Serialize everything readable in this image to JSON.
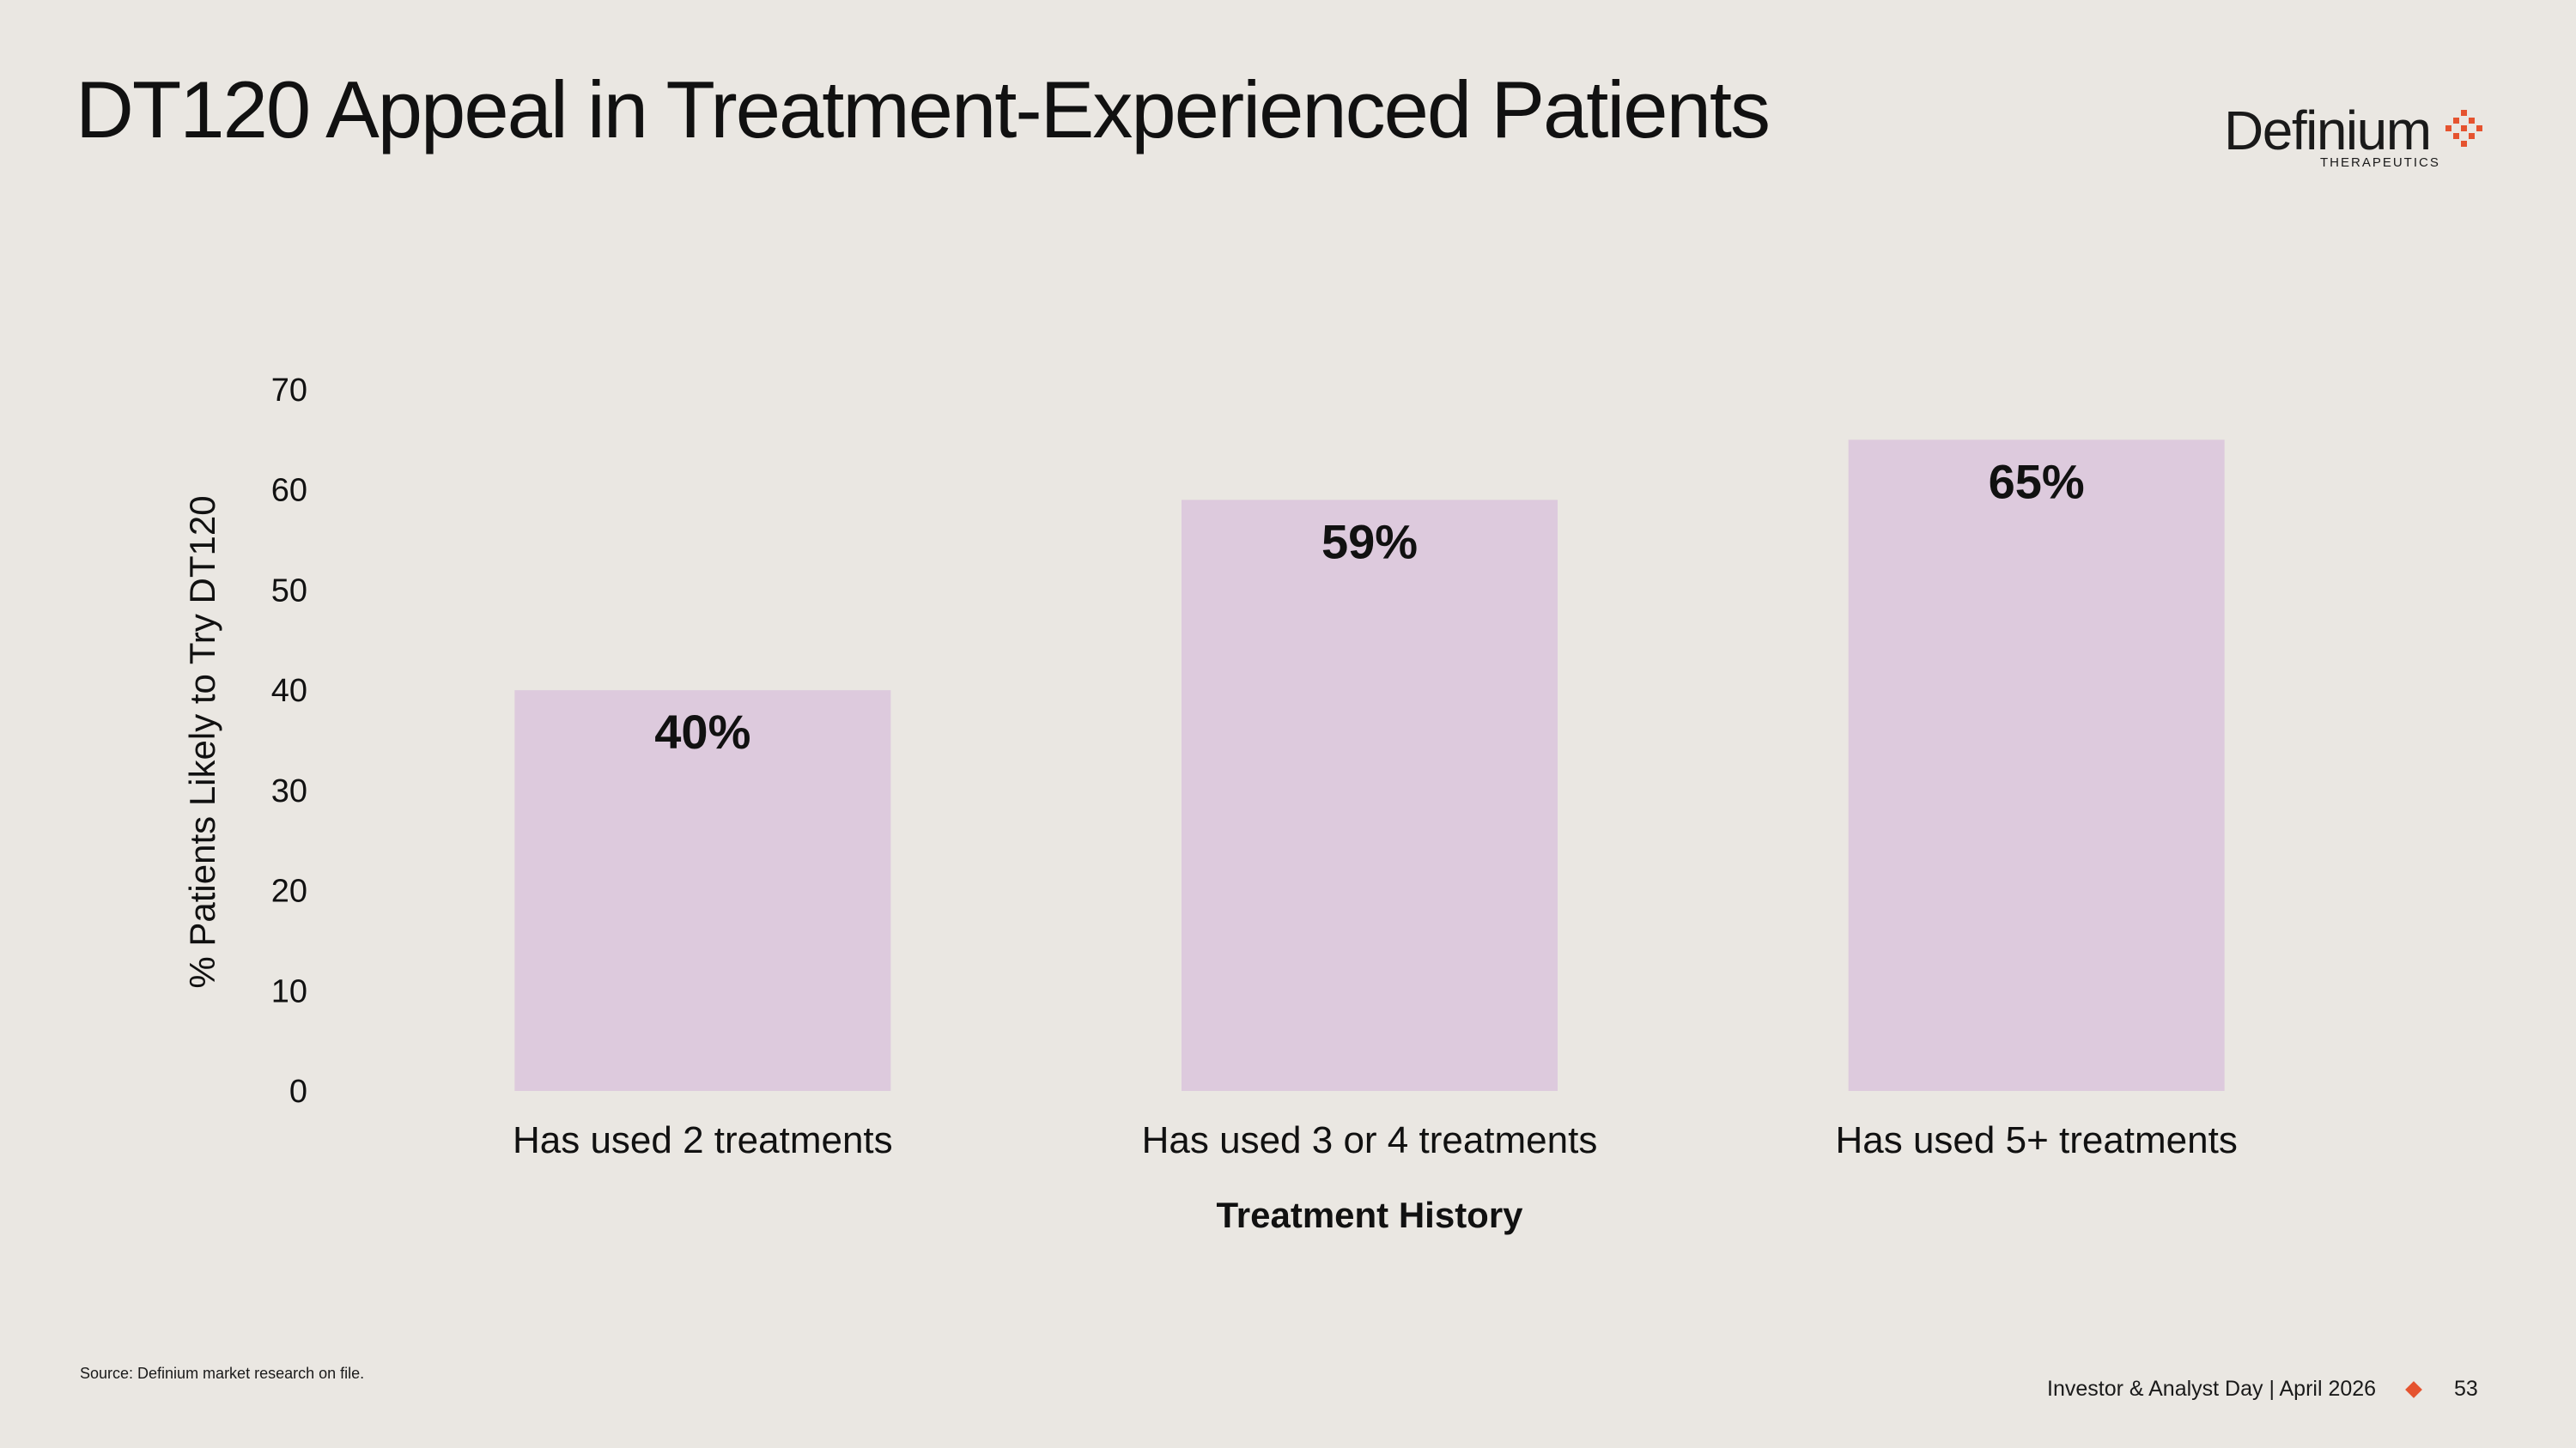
{
  "slide": {
    "title": "DT120 Appeal in Treatment-Experienced Patients",
    "source": "Source:  Definium  market research on file.",
    "footer_event": "Investor & Analyst Day | April 2026",
    "page_number": "53"
  },
  "logo": {
    "name": "Definium",
    "subtitle": "THERAPEUTICS",
    "icon": "dotted-diamond-icon",
    "color": "#E5532F"
  },
  "colors": {
    "background": "#EAE7E2",
    "bar": "#DDCADD",
    "accent": "#E5532F",
    "text": "#111111"
  },
  "chart_data": {
    "type": "bar",
    "categories": [
      "Has used 2 treatments",
      "Has used 3 or 4 treatments",
      "Has used 5+ treatments"
    ],
    "values": [
      40,
      59,
      65
    ],
    "data_labels": [
      "40%",
      "59%",
      "65%"
    ],
    "title": "",
    "xlabel": "Treatment History",
    "ylabel": "% Patients Likely to Try DT120",
    "ylim": [
      0,
      70
    ],
    "yticks": [
      0,
      10,
      20,
      30,
      40,
      50,
      60,
      70
    ],
    "grid": false,
    "legend": "none"
  }
}
